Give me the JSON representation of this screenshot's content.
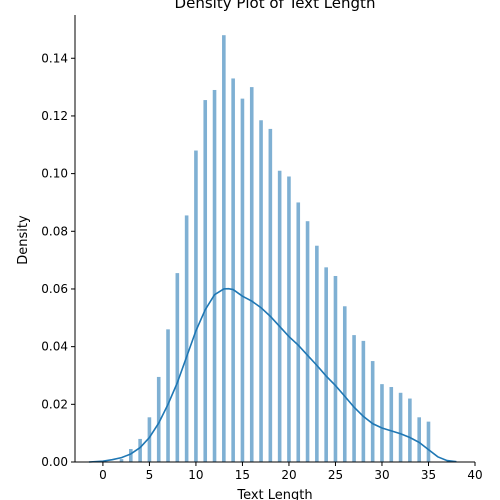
{
  "chart_data": {
    "type": "bar",
    "title": "Density Plot of Text Length",
    "xlabel": "Text Length",
    "ylabel": "Density",
    "xlim": [
      -3,
      40
    ],
    "ylim": [
      0,
      0.155
    ],
    "x_ticks": [
      0,
      5,
      10,
      15,
      20,
      25,
      30,
      35,
      40
    ],
    "y_ticks": [
      0.0,
      0.02,
      0.04,
      0.06,
      0.08,
      0.1,
      0.12,
      0.14
    ],
    "y_tick_labels": [
      "0.00",
      "0.02",
      "0.04",
      "0.06",
      "0.08",
      "0.10",
      "0.12",
      "0.14"
    ],
    "x_tick_labels": [
      "0",
      "5",
      "10",
      "15",
      "20",
      "25",
      "30",
      "35",
      "40"
    ],
    "grid": false,
    "colors": {
      "bars": "#7fb0d3",
      "kde": "#1f77b4",
      "axis": "#000000"
    },
    "series": [
      {
        "type": "bar",
        "x": [
          2,
          3,
          4,
          5,
          6,
          7,
          8,
          9,
          10,
          11,
          12,
          13,
          14,
          15,
          16,
          17,
          18,
          19,
          20,
          21,
          22,
          23,
          24,
          25,
          26,
          27,
          28,
          29,
          30,
          31,
          32,
          33,
          34,
          35
        ],
        "values": [
          0.001,
          0.0045,
          0.008,
          0.0155,
          0.0295,
          0.046,
          0.0655,
          0.0855,
          0.108,
          0.1255,
          0.129,
          0.148,
          0.133,
          0.126,
          0.13,
          0.1185,
          0.1155,
          0.101,
          0.099,
          0.09,
          0.0835,
          0.075,
          0.0675,
          0.0645,
          0.054,
          0.044,
          0.042,
          0.035,
          0.027,
          0.026,
          0.024,
          0.022,
          0.0155,
          0.014
        ]
      },
      {
        "type": "line",
        "x": [
          -1.5,
          0,
          1,
          2,
          3,
          4,
          5,
          6,
          7,
          8,
          9,
          10,
          11,
          12,
          13,
          13.5,
          14,
          15,
          16,
          17,
          18,
          19,
          20,
          21,
          22,
          23,
          24,
          25,
          26,
          27,
          28,
          29,
          30,
          31,
          32,
          33,
          34,
          35,
          36,
          37,
          38
        ],
        "values": [
          0.0,
          0.0003,
          0.0008,
          0.0015,
          0.0028,
          0.005,
          0.0085,
          0.0135,
          0.02,
          0.0275,
          0.0365,
          0.0455,
          0.0528,
          0.058,
          0.06,
          0.0601,
          0.0598,
          0.0575,
          0.0558,
          0.0535,
          0.0505,
          0.047,
          0.0435,
          0.0405,
          0.037,
          0.0335,
          0.0298,
          0.0265,
          0.0228,
          0.019,
          0.0158,
          0.0133,
          0.0118,
          0.0108,
          0.0098,
          0.0085,
          0.0068,
          0.0043,
          0.0018,
          0.0005,
          0.0001
        ]
      }
    ]
  }
}
